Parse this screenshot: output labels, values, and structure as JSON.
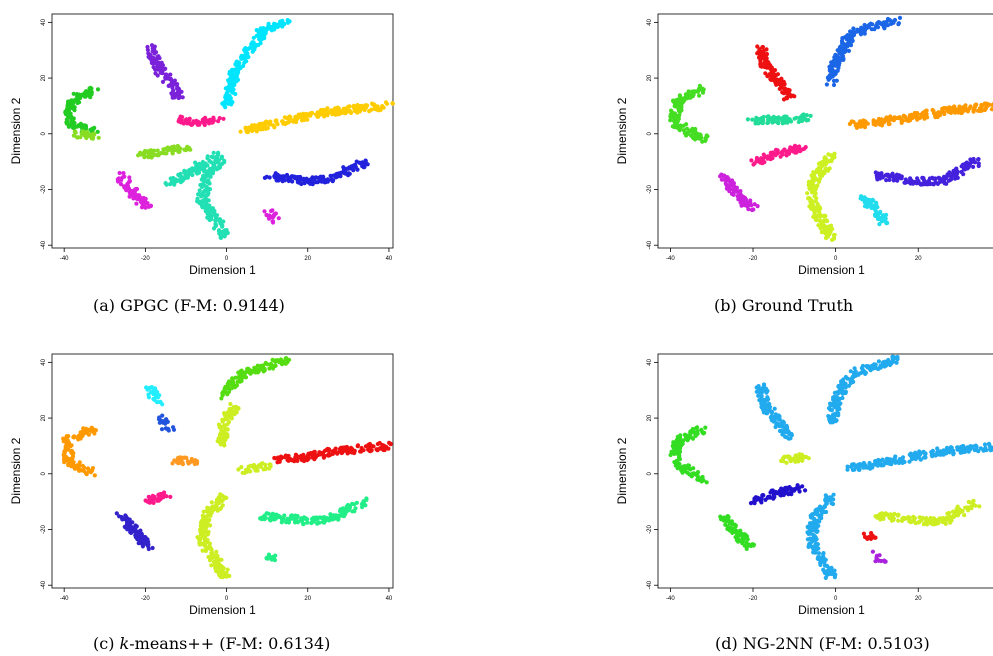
{
  "chart_data": [
    {
      "type": "scatter",
      "caption_letter": "(a)",
      "caption_text": "GPGC (F-M: 0.9144)",
      "xlabel": "Dimension 1",
      "ylabel": "Dimension 2",
      "xlim": [
        -43,
        41
      ],
      "ylim": [
        -41,
        43
      ],
      "xticks": [
        "-40",
        "-20",
        "0",
        "20",
        "40"
      ],
      "yticks": [
        "-40",
        "-20",
        "0",
        "20",
        "40"
      ],
      "xtick_values": [
        -40,
        -20,
        0,
        20,
        40
      ],
      "ytick_values": [
        -40,
        -20,
        0,
        20,
        40
      ],
      "series": [
        {
          "color": "#00e5ff",
          "clusters": [
            [
              0,
              10,
              2,
              22,
              9,
              37,
              15,
              41
            ]
          ]
        },
        {
          "color": "#ffcc00",
          "clusters": [
            [
              4,
              1,
              15,
              5,
              26,
              8,
              40,
              10
            ]
          ]
        },
        {
          "color": "#7a22d9",
          "clusters": [
            [
              -19,
              31,
              -17,
              24,
              -13,
              17,
              -12,
              13
            ]
          ]
        },
        {
          "color": "#22cc22",
          "clusters": [
            [
              -32,
              16,
              -38,
              12,
              -39,
              4,
              -32,
              0
            ]
          ]
        },
        {
          "color": "#88dd22",
          "clusters": [
            [
              -37,
              0,
              -32,
              -1
            ],
            [
              -21,
              -8,
              -15,
              -6,
              -10,
              -5
            ]
          ]
        },
        {
          "color": "#ff1a8c",
          "clusters": [
            [
              -12,
              5,
              -7,
              4,
              -2,
              6
            ]
          ]
        },
        {
          "color": "#2222dd",
          "clusters": [
            [
              10,
              -15,
              20,
              -17,
              26,
              -16,
              34,
              -10
            ]
          ]
        },
        {
          "color": "#22e0b4",
          "clusters": [
            [
              -1,
              -8,
              -5,
              -16,
              -6,
              -24,
              0,
              -37
            ],
            [
              -14,
              -18,
              -7,
              -12,
              -2,
              -8
            ]
          ]
        },
        {
          "color": "#dd22dd",
          "clusters": [
            [
              -26,
              -15,
              -23,
              -21,
              -19,
              -27
            ],
            [
              10,
              -28,
              12,
              -31
            ]
          ]
        }
      ]
    },
    {
      "type": "scatter",
      "caption_letter": "(b)",
      "caption_text": "Ground Truth",
      "xlabel": "Dimension 1",
      "ylabel": "Dimension 2",
      "xlim": [
        -43,
        41
      ],
      "ylim": [
        -41,
        43
      ],
      "xticks": [
        "-40",
        "-20",
        "0",
        "20",
        "40"
      ],
      "yticks": [
        "-40",
        "-20",
        "0",
        "20",
        "40"
      ],
      "xtick_values": [
        -40,
        -20,
        0,
        20,
        40
      ],
      "ytick_values": [
        -40,
        -20,
        0,
        20,
        40
      ],
      "series": [
        {
          "color": "#1a66e6",
          "clusters": [
            [
              -1,
              18,
              0,
              26,
              4,
              36,
              15,
              41
            ]
          ]
        },
        {
          "color": "#ff9900",
          "clusters": [
            [
              4,
              3,
              15,
              5,
              26,
              8,
              40,
              10
            ]
          ]
        },
        {
          "color": "#ee1111",
          "clusters": [
            [
              -18,
              31,
              -17,
              24,
              -13,
              17,
              -11,
              13
            ]
          ]
        },
        {
          "color": "#44dd22",
          "clusters": [
            [
              -32,
              16,
              -38,
              12,
              -39,
              4,
              -32,
              -2
            ]
          ]
        },
        {
          "color": "#22dd99",
          "clusters": [
            [
              -20,
              5,
              -11,
              5,
              -7,
              6
            ]
          ]
        },
        {
          "color": "#ff1a8c",
          "clusters": [
            [
              -20,
              -10,
              -14,
              -7,
              -8,
              -5
            ]
          ]
        },
        {
          "color": "#4422dd",
          "clusters": [
            [
              10,
              -15,
              20,
              -17,
              26,
              -17,
              34,
              -10
            ]
          ]
        },
        {
          "color": "#ccf022",
          "clusters": [
            [
              -1,
              -8,
              -5,
              -16,
              -6,
              -24,
              -1,
              -37
            ]
          ]
        },
        {
          "color": "#cc22dd",
          "clusters": [
            [
              -27,
              -15,
              -24,
              -21,
              -20,
              -27
            ]
          ]
        },
        {
          "color": "#22ddee",
          "clusters": [
            [
              7,
              -23,
              12,
              -32
            ]
          ]
        }
      ]
    },
    {
      "type": "scatter",
      "caption_letter": "(c)",
      "caption_text": "-means++ (F-M: 0.6134)",
      "caption_italic": "k",
      "xlabel": "Dimension 1",
      "ylabel": "Dimension 2",
      "xlim": [
        -43,
        41
      ],
      "ylim": [
        -41,
        43
      ],
      "xticks": [
        "-40",
        "-20",
        "0",
        "20",
        "40"
      ],
      "yticks": [
        "-40",
        "-20",
        "0",
        "20",
        "40"
      ],
      "xtick_values": [
        -40,
        -20,
        0,
        20,
        40
      ],
      "ytick_values": [
        -40,
        -20,
        0,
        20,
        40
      ],
      "series": [
        {
          "color": "#55dd11",
          "clusters": [
            [
              -1,
              28,
              0,
              30,
              4,
              36,
              15,
              41
            ]
          ]
        },
        {
          "color": "#ccee22",
          "clusters": [
            [
              -1,
              10,
              -1,
              18,
              2,
              24
            ],
            [
              4,
              1,
              10,
              3
            ],
            [
              -1,
              -8,
              -5,
              -16,
              -6,
              -24,
              0,
              -37
            ]
          ]
        },
        {
          "color": "#ee1111",
          "clusters": [
            [
              12,
              5,
              20,
              6,
              26,
              8,
              40,
              10
            ]
          ]
        },
        {
          "color": "#22ee88",
          "clusters": [
            [
              8,
              -15,
              20,
              -17,
              26,
              -16,
              34,
              -10
            ],
            [
              11,
              -29,
              11,
              -31
            ]
          ]
        },
        {
          "color": "#ff9900",
          "clusters": [
            [
              -33,
              16,
              -39,
              12,
              -39,
              4,
              -33,
              0
            ]
          ]
        },
        {
          "color": "#22eeff",
          "clusters": [
            [
              -19,
              31,
              -17,
              26
            ]
          ]
        },
        {
          "color": "#2255dd",
          "clusters": [
            [
              -16,
              20,
              -14,
              16
            ]
          ]
        },
        {
          "color": "#ff9922",
          "clusters": [
            [
              -13,
              5,
              -7,
              4
            ]
          ]
        },
        {
          "color": "#ff1a8c",
          "clusters": [
            [
              -20,
              -10,
              -14,
              -7
            ]
          ]
        },
        {
          "color": "#3322cc",
          "clusters": [
            [
              -26,
              -15,
              -22,
              -22,
              -19,
              -27
            ]
          ]
        }
      ]
    },
    {
      "type": "scatter",
      "caption_letter": "(d)",
      "caption_text": "NG-2NN (F-M: 0.5103)",
      "xlabel": "Dimension 1",
      "ylabel": "Dimension 2",
      "xlim": [
        -43,
        41
      ],
      "ylim": [
        -41,
        43
      ],
      "xticks": [
        "-40",
        "-20",
        "0",
        "20",
        "40"
      ],
      "yticks": [
        "-40",
        "-20",
        "0",
        "20",
        "40"
      ],
      "xtick_values": [
        -40,
        -20,
        0,
        20,
        40
      ],
      "ytick_values": [
        -40,
        -20,
        0,
        20,
        40
      ],
      "series": [
        {
          "color": "#22aaee",
          "clusters": [
            [
              -1,
              18,
              0,
              26,
              4,
              36,
              15,
              41
            ],
            [
              4,
              2,
              15,
              5,
              26,
              8,
              40,
              10
            ],
            [
              -18,
              31,
              -17,
              24,
              -13,
              17,
              -11,
              13
            ],
            [
              -1,
              -8,
              -5,
              -16,
              -6,
              -24,
              -1,
              -37
            ]
          ]
        },
        {
          "color": "#33dd22",
          "clusters": [
            [
              -32,
              16,
              -38,
              12,
              -39,
              4,
              -32,
              -2
            ],
            [
              -27,
              -15,
              -24,
              -21,
              -20,
              -27
            ]
          ]
        },
        {
          "color": "#ccee22",
          "clusters": [
            [
              -13,
              5,
              -7,
              6
            ],
            [
              10,
              -15,
              20,
              -17,
              26,
              -17,
              34,
              -10
            ]
          ]
        },
        {
          "color": "#2211cc",
          "clusters": [
            [
              -20,
              -10,
              -14,
              -7,
              -8,
              -5
            ]
          ]
        },
        {
          "color": "#ee1111",
          "clusters": [
            [
              8,
              -22,
              9,
              -24
            ]
          ]
        },
        {
          "color": "#aa22dd",
          "clusters": [
            [
              10,
              -29,
              11,
              -31
            ]
          ]
        }
      ]
    }
  ]
}
